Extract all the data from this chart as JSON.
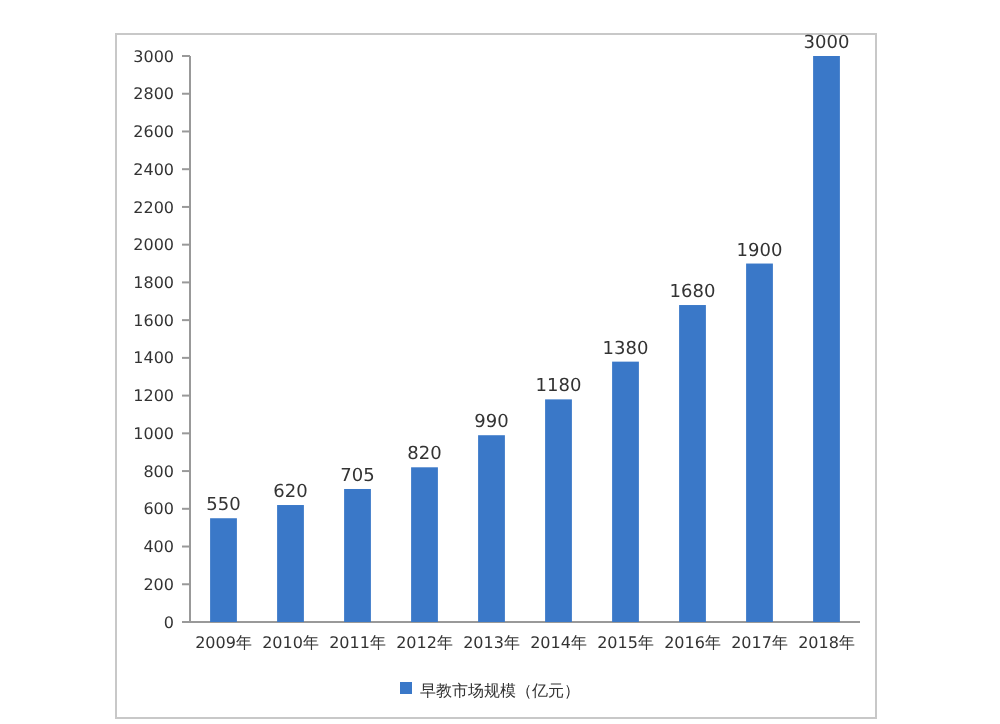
{
  "chart_data": {
    "type": "bar",
    "categories": [
      "2009年",
      "2010年",
      "2011年",
      "2012年",
      "2013年",
      "2014年",
      "2015年",
      "2016年",
      "2017年",
      "2018年"
    ],
    "series": [
      {
        "name": "早教市场规模（亿元）",
        "color": "#3a78c8",
        "values": [
          550,
          620,
          705,
          820,
          990,
          1180,
          1380,
          1680,
          1900,
          3000
        ]
      }
    ],
    "ylim": [
      0,
      3000
    ],
    "yticks": [
      0,
      200,
      400,
      600,
      800,
      1000,
      1200,
      1400,
      1600,
      1800,
      2000,
      2200,
      2400,
      2600,
      2800,
      3000
    ],
    "data_labels": true,
    "legend": "bottom",
    "grid": false
  }
}
